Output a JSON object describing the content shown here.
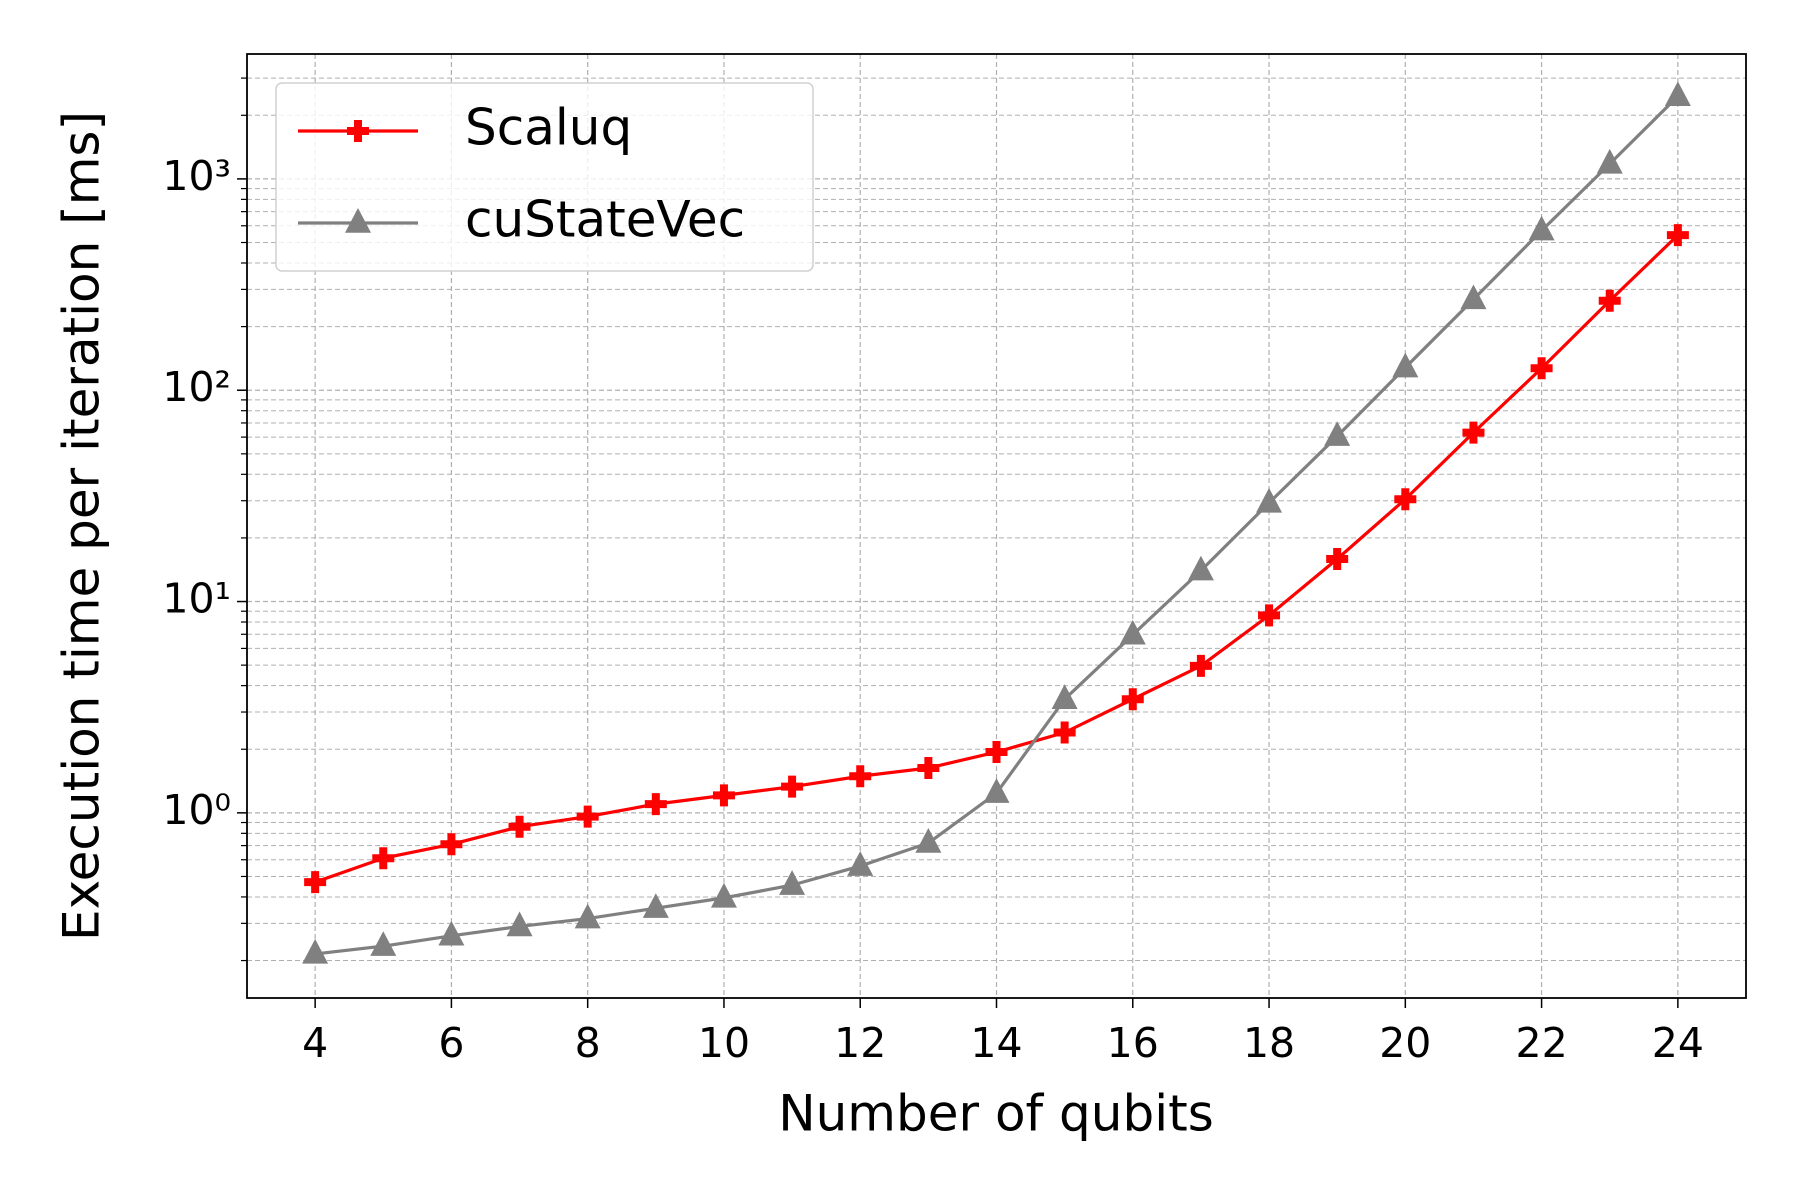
{
  "chart_data": {
    "type": "line",
    "xlabel": "Number of qubits",
    "ylabel": "Execution time per iteration [ms]",
    "x": [
      4,
      5,
      6,
      7,
      8,
      9,
      10,
      11,
      12,
      13,
      14,
      15,
      16,
      17,
      18,
      19,
      20,
      21,
      22,
      23,
      24
    ],
    "series": [
      {
        "name": "Scaluq",
        "color": "#ff0000",
        "marker": "plus",
        "values": [
          0.47,
          0.61,
          0.71,
          0.86,
          0.96,
          1.1,
          1.21,
          1.33,
          1.49,
          1.63,
          1.94,
          2.4,
          3.45,
          4.96,
          8.6,
          15.9,
          30.5,
          63,
          127,
          265,
          542
        ]
      },
      {
        "name": "cuStateVec",
        "color": "#808080",
        "marker": "triangle",
        "values": [
          0.215,
          0.234,
          0.262,
          0.29,
          0.316,
          0.354,
          0.396,
          0.455,
          0.56,
          0.72,
          1.24,
          3.45,
          6.96,
          14.0,
          29.3,
          60.6,
          128,
          269,
          569,
          1178,
          2460
        ]
      }
    ],
    "xlim": [
      3,
      25
    ],
    "xticks": [
      4,
      6,
      8,
      10,
      12,
      14,
      16,
      18,
      20,
      22,
      24
    ],
    "ylim": [
      0.133,
      3900
    ],
    "yscale": "log",
    "yticks": [
      {
        "value": 1,
        "label": "10⁰"
      },
      {
        "value": 10,
        "label": "10¹"
      },
      {
        "value": 100,
        "label": "10²"
      },
      {
        "value": 1000,
        "label": "10³"
      }
    ],
    "grid": true,
    "minor_grid": true,
    "legend": "upper left"
  }
}
